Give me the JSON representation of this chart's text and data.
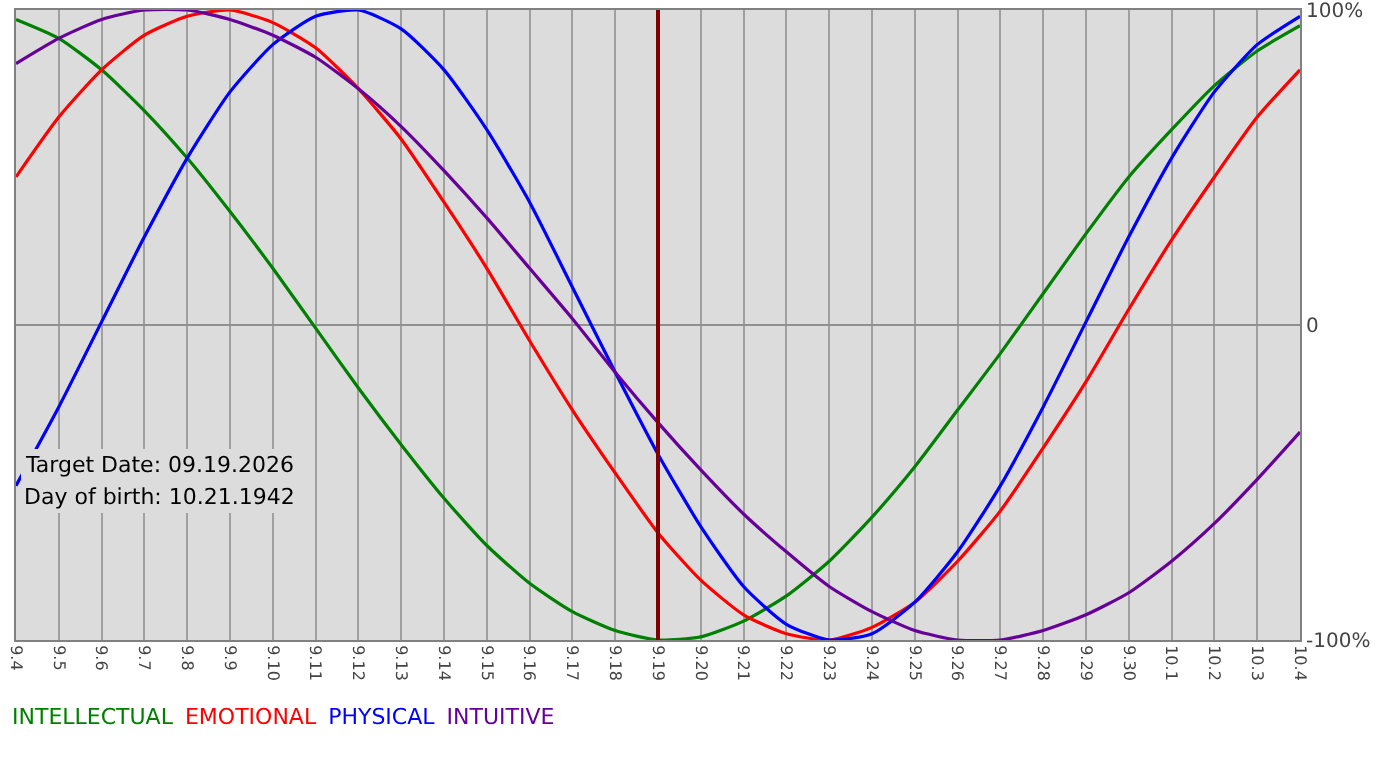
{
  "chart_data": {
    "type": "line",
    "categories": [
      "9.4",
      "9.5",
      "9.6",
      "9.7",
      "9.8",
      "9.9",
      "9.10",
      "9.11",
      "9.12",
      "9.13",
      "9.14",
      "9.15",
      "9.16",
      "9.17",
      "9.18",
      "9.19",
      "9.20",
      "9.21",
      "9.22",
      "9.23",
      "9.24",
      "9.25",
      "9.26",
      "9.27",
      "9.28",
      "9.29",
      "9.30",
      "10.1",
      "10.2",
      "10.3",
      "10.4"
    ],
    "series": [
      {
        "name": "INTELLECTUAL",
        "color": "#008000",
        "values": [
          97,
          91,
          81,
          68,
          53,
          36,
          18,
          -1,
          -20,
          -38,
          -55,
          -70,
          -82,
          -91,
          -97,
          -100,
          -99,
          -94,
          -86,
          -75,
          -61,
          -45,
          -27,
          -9,
          10,
          29,
          47,
          62,
          76,
          87,
          95
        ]
      },
      {
        "name": "EMOTIONAL",
        "color": "#ff0000",
        "values": [
          47,
          66,
          81,
          92,
          98,
          100,
          96,
          88,
          75,
          59,
          39,
          18,
          -5,
          -27,
          -47,
          -66,
          -81,
          -92,
          -98,
          -100,
          -96,
          -88,
          -75,
          -59,
          -39,
          -18,
          5,
          27,
          47,
          66,
          81
        ]
      },
      {
        "name": "PHYSICAL",
        "color": "#0000ff",
        "values": [
          -51,
          -26,
          1,
          28,
          53,
          74,
          89,
          98,
          100,
          94,
          81,
          62,
          39,
          12,
          -15,
          -41,
          -64,
          -83,
          -95,
          -100,
          -98,
          -88,
          -72,
          -51,
          -26,
          1,
          28,
          53,
          74,
          89,
          98
        ]
      },
      {
        "name": "INTUITIVE",
        "color": "#660099",
        "values": [
          83,
          91,
          97,
          100,
          100,
          97,
          92,
          85,
          75,
          63,
          49,
          34,
          18,
          2,
          -15,
          -31,
          -46,
          -60,
          -72,
          -83,
          -91,
          -97,
          -100,
          -100,
          -97,
          -92,
          -85,
          -75,
          -63,
          -49,
          -34
        ]
      }
    ],
    "ylim": [
      -100,
      100
    ],
    "yticks": [
      {
        "value": 100,
        "label": "100%"
      },
      0,
      {
        "value": -100,
        "label": "-100%"
      }
    ],
    "grid": true,
    "legend": "bottom left",
    "marker": "none",
    "line_style": "solid",
    "ref_lines": [
      {
        "axis": "x",
        "value": "9.19",
        "color": "#800000"
      }
    ],
    "annotations": [
      "Target Date: 09.19.2026",
      "Day of birth: 10.21.1942"
    ]
  }
}
